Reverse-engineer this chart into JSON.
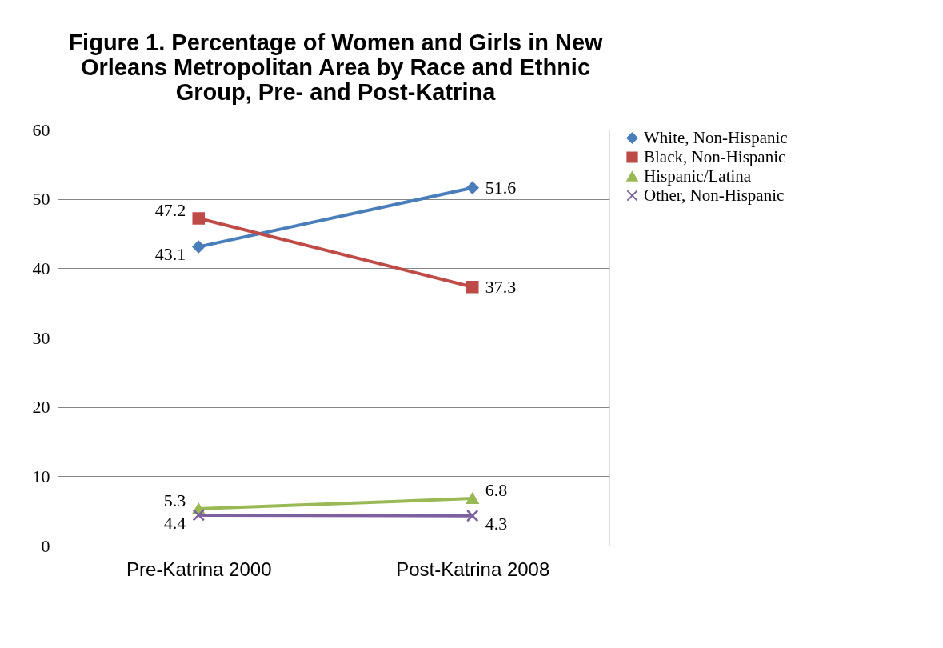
{
  "chart_data": {
    "type": "line",
    "title": [
      "Figure 1. Percentage of Women and Girls in New",
      "Orleans Metropolitan Area by Race and Ethnic",
      "Group, Pre- and Post-Katrina"
    ],
    "categories": [
      "Pre-Katrina 2000",
      "Post-Katrina 2008"
    ],
    "series": [
      {
        "name": "White, Non-Hispanic",
        "color": "#4a7ebb",
        "marker": "diamond",
        "values": [
          43.1,
          51.6
        ]
      },
      {
        "name": "Black, Non-Hispanic",
        "color": "#be4b48",
        "marker": "square",
        "values": [
          47.2,
          37.3
        ]
      },
      {
        "name": "Hispanic/Latina",
        "color": "#98b954",
        "marker": "triangle",
        "values": [
          5.3,
          6.8
        ]
      },
      {
        "name": "Other, Non-Hispanic",
        "color": "#7d60a0",
        "marker": "cross",
        "values": [
          4.4,
          4.3
        ]
      }
    ],
    "ylim": [
      0,
      60
    ],
    "yticks": [
      0,
      10,
      20,
      30,
      40,
      50,
      60
    ],
    "grid": "y",
    "legend": "right",
    "data_labels": true,
    "line_style": "solid"
  }
}
